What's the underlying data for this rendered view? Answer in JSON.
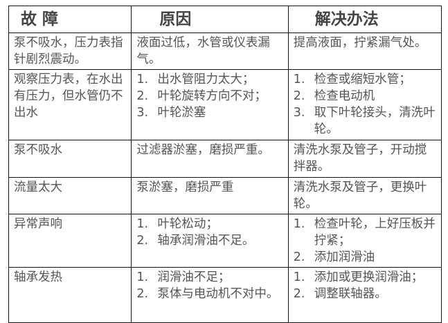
{
  "headers": [
    "故 障",
    "原因",
    "解决办法"
  ],
  "rows": [
    {
      "fault": "泵不吸水，压力表指针剧烈震动。",
      "cause": "液面过低，水管或仪表漏气。",
      "solution": "提高液面，拧紧漏气处。"
    },
    {
      "fault": "观察压力表，在水出有压力，但水管仍不出水",
      "cause_items": [
        "出水管阻力太大；",
        "叶轮旋转方向不对；",
        "叶轮淤塞"
      ],
      "solution_items": [
        "检查或缩短水管；",
        "检查电动机",
        "取下叶轮接头，清洗叶轮。"
      ]
    },
    {
      "fault": "泵不吸水",
      "cause": "过滤器淤塞，磨损严重。",
      "solution": "清洗水泵及管子，开动搅拌器。"
    },
    {
      "fault": "流量太大",
      "cause": "泵淤塞，磨损严重",
      "solution": "清洗水泵及管子，更换叶轮。"
    },
    {
      "fault": "异常声响",
      "cause_items": [
        "叶轮松动；",
        "轴承润滑油不足。"
      ],
      "solution_items": [
        "检查叶轮，上好压板并拧紧；",
        "添加润滑油"
      ]
    },
    {
      "fault": "轴承发热",
      "cause_items": [
        "润滑油不足；",
        "泵体与电动机不对中。"
      ],
      "solution_items": [
        "添加或更换润滑油；",
        "调整联轴器。"
      ]
    }
  ]
}
